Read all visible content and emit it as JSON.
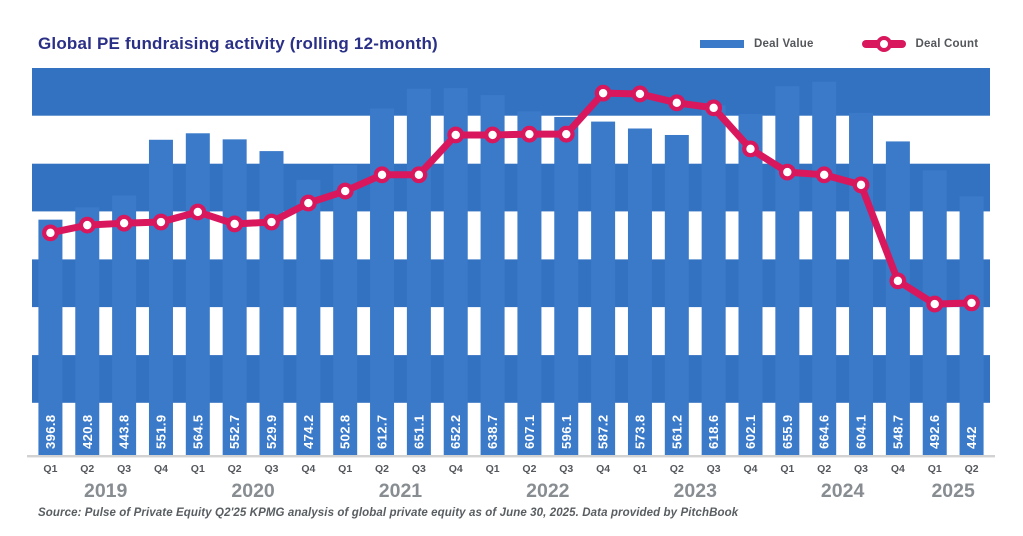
{
  "chart_data": {
    "type": "bar",
    "combo_with_line": true,
    "title": "Global PE fundraising activity (rolling 12-month)",
    "categories": [
      "Q1",
      "Q2",
      "Q3",
      "Q4",
      "Q1",
      "Q2",
      "Q3",
      "Q4",
      "Q1",
      "Q2",
      "Q3",
      "Q4",
      "Q1",
      "Q2",
      "Q3",
      "Q4",
      "Q1",
      "Q2",
      "Q3",
      "Q4",
      "Q1",
      "Q2",
      "Q3",
      "Q4",
      "Q1",
      "Q2"
    ],
    "year_groups": [
      {
        "label": "2019",
        "quarters": 4
      },
      {
        "label": "2020",
        "quarters": 4
      },
      {
        "label": "2021",
        "quarters": 4
      },
      {
        "label": "2022",
        "quarters": 4
      },
      {
        "label": "2023",
        "quarters": 4
      },
      {
        "label": "2024",
        "quarters": 4
      },
      {
        "label": "2025",
        "quarters": 2
      }
    ],
    "series": [
      {
        "name": "Deal Value",
        "type": "bar",
        "values": [
          396.8,
          420.8,
          443.8,
          551.9,
          564.5,
          552.7,
          529.9,
          474.2,
          502.8,
          612.7,
          651.1,
          652.2,
          638.7,
          607.1,
          596.1,
          587.2,
          573.8,
          561.2,
          618.6,
          602.1,
          655.9,
          664.6,
          604.1,
          548.7,
          492.6,
          442
        ]
      },
      {
        "name": "Deal Count",
        "type": "line",
        "numeric_labels_shown": false,
        "relative_height_pct": [
          57.4,
          59.4,
          59.9,
          60.2,
          62.8,
          59.7,
          60.2,
          65.1,
          68.2,
          72.4,
          72.4,
          82.7,
          82.7,
          82.9,
          82.9,
          93.5,
          93.3,
          91.0,
          89.7,
          79.1,
          73.1,
          72.4,
          69.8,
          45.0,
          39.0,
          39.3
        ]
      }
    ],
    "legend_position": "top-right",
    "grid": "four horizontal blue background bands with white gaps",
    "value_labels": "inside bar bottoms, rotated 90deg, white",
    "source": "Source: Pulse of Private Equity Q2'25 KPMG analysis of global private equity as of June 30, 2025. Data provided by PitchBook",
    "colors": {
      "bar": "#3B7AC9",
      "band": "#3371C1",
      "line": "#D9175D",
      "point_fill": "#FFFFFF",
      "title_text": "#2B3087",
      "legend_text": "#53565A",
      "quarter_text": "#54575C",
      "year_text": "#888D92",
      "value_label_text": "#FFFFFF",
      "source_text": "#595E62",
      "axis_line": "#D2D2D2"
    }
  }
}
